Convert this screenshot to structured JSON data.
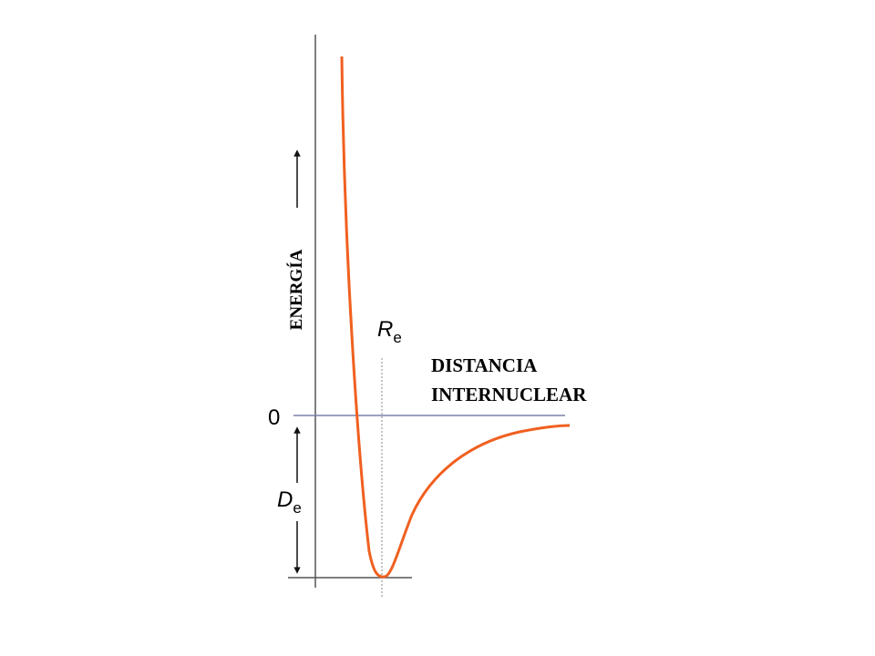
{
  "labels": {
    "energy": "ENERGÍA",
    "zero": "0",
    "re_symbol": "R",
    "re_subscript": "e",
    "de_symbol": "D",
    "de_subscript": "e",
    "distance_line1": "DISTANCIA",
    "distance_line2": "INTERNUCLEAR"
  }
}
